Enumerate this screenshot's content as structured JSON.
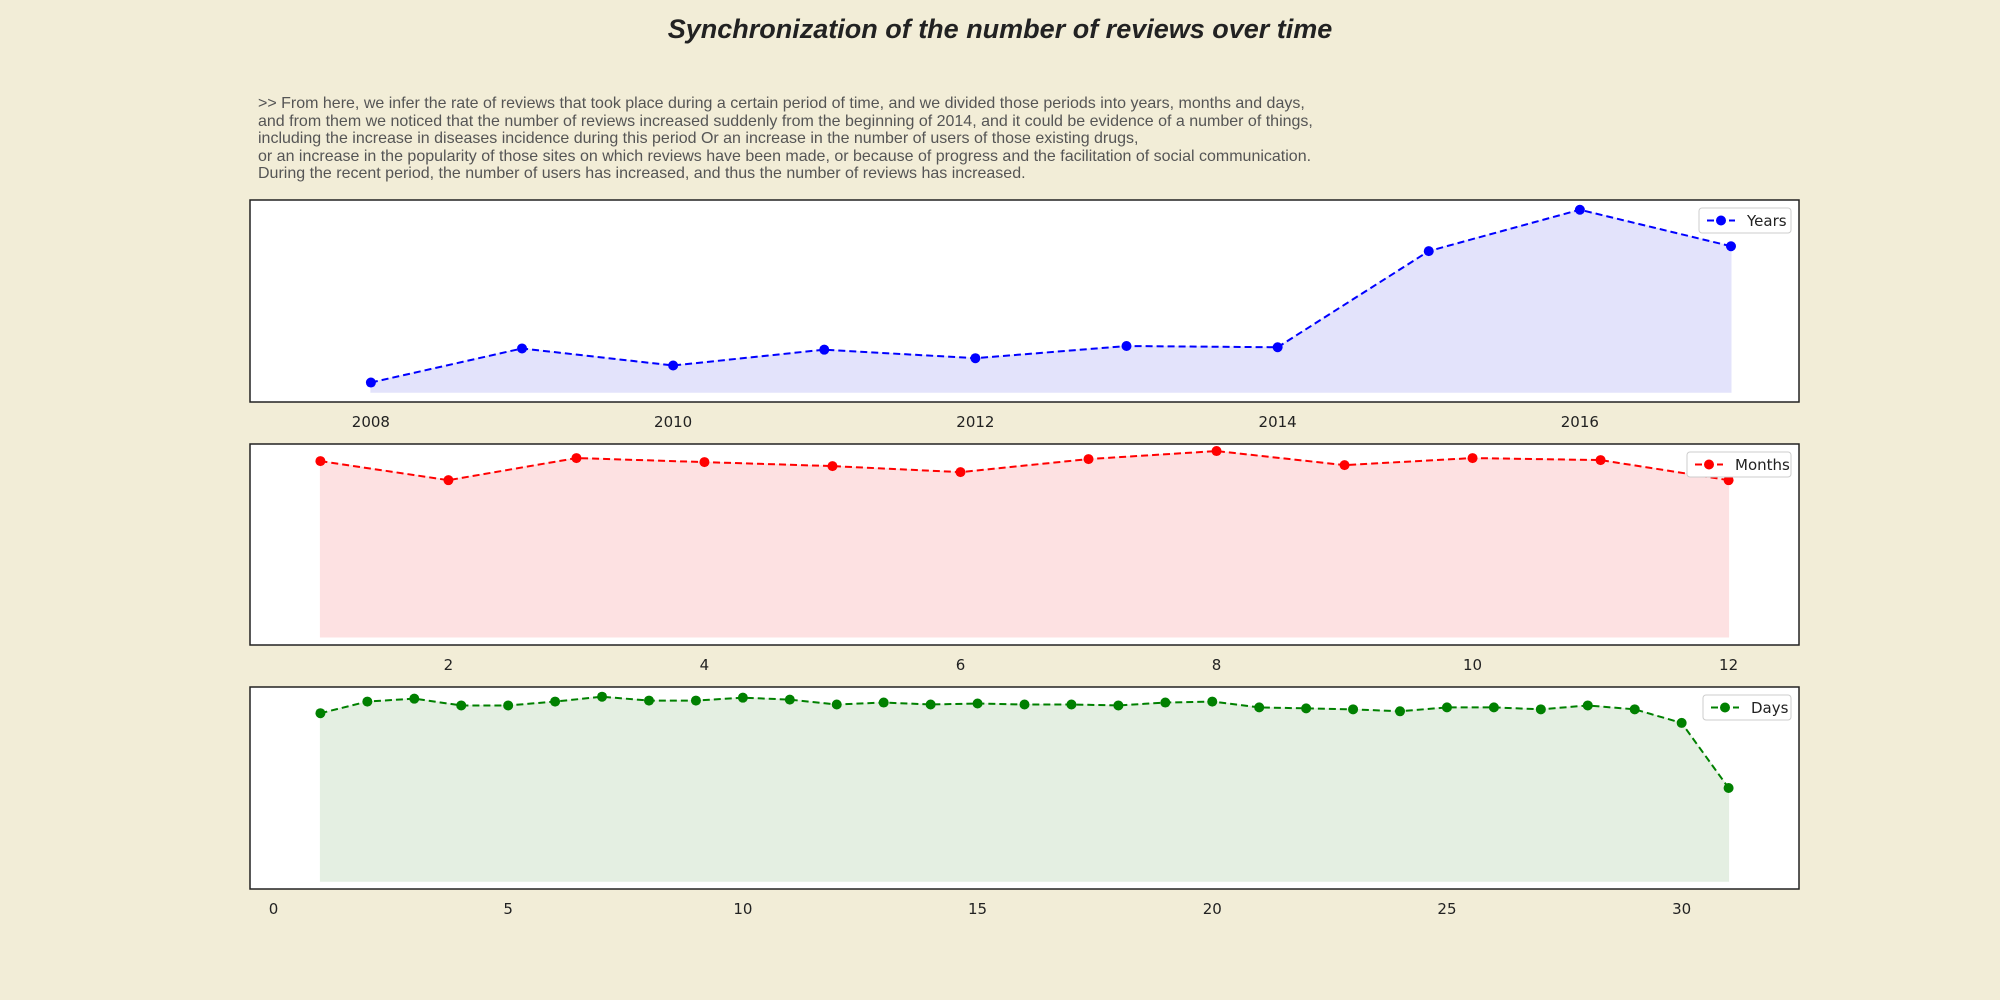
{
  "title": "Synchronization of the number of reviews over time",
  "description": [
    ">> From here, we infer the rate of reviews that took place during a certain period of time, and we divided those periods into years, months and days,",
    "and from them we noticed that the number of reviews increased suddenly from the beginning of 2014, and it could be evidence of a number of things,",
    "including the increase in diseases incidence during this period Or an increase in the number of users of those existing drugs,",
    "or an increase in the popularity of those sites on which reviews have been made, or because of progress and the facilitation of social communication.",
    "During the recent period, the number of users has increased, and thus the number of reviews has increased."
  ],
  "chart_data": [
    {
      "type": "area",
      "legend": "Years",
      "legend_position": "top-right",
      "color": "#0000ff",
      "fill": "#e3e3fb",
      "x": [
        2008,
        2009,
        2010,
        2011,
        2012,
        2013,
        2014,
        2015,
        2016,
        2017
      ],
      "values": [
        4,
        18,
        11,
        17.5,
        14,
        19,
        18.5,
        58,
        75,
        60
      ],
      "xticks": [
        2008,
        2010,
        2012,
        2014,
        2016
      ],
      "xlim": [
        2007.2,
        2017.45
      ],
      "ylim": [
        -4,
        79
      ],
      "yaxis_visible": false,
      "grid": false
    },
    {
      "type": "area",
      "legend": "Months",
      "legend_position": "top-right",
      "color": "#ff0000",
      "fill": "#fde1e2",
      "x": [
        1,
        2,
        3,
        4,
        5,
        6,
        7,
        8,
        9,
        10,
        11,
        12
      ],
      "values": [
        87.5,
        78,
        89,
        87,
        85,
        82,
        88.5,
        92.5,
        85.5,
        89,
        88,
        78
      ],
      "xticks": [
        2,
        4,
        6,
        8,
        10,
        12
      ],
      "xlim": [
        0.45,
        12.55
      ],
      "ylim": [
        -4,
        96
      ],
      "yaxis_visible": false,
      "grid": false
    },
    {
      "type": "area",
      "legend": "Days",
      "legend_position": "top-right",
      "color": "#008000",
      "fill": "#e4efe2",
      "x": [
        1,
        2,
        3,
        4,
        5,
        6,
        7,
        8,
        9,
        10,
        11,
        12,
        13,
        14,
        15,
        16,
        17,
        18,
        19,
        20,
        21,
        22,
        23,
        24,
        25,
        26,
        27,
        28,
        29,
        30,
        31
      ],
      "values": [
        86.5,
        92.5,
        94,
        90.5,
        90.5,
        92.5,
        95,
        93,
        93,
        94.5,
        93.5,
        91,
        92,
        91,
        91.5,
        91,
        91,
        90.5,
        92,
        92.5,
        89.5,
        89,
        88.5,
        87.5,
        89.5,
        89.5,
        88.5,
        90.5,
        88.5,
        81.5,
        48
      ],
      "xticks": [
        0,
        5,
        10,
        15,
        20,
        25,
        30
      ],
      "xlim": [
        -0.5,
        32.5
      ],
      "ylim": [
        -4,
        100
      ],
      "yaxis_visible": false,
      "grid": false
    }
  ]
}
